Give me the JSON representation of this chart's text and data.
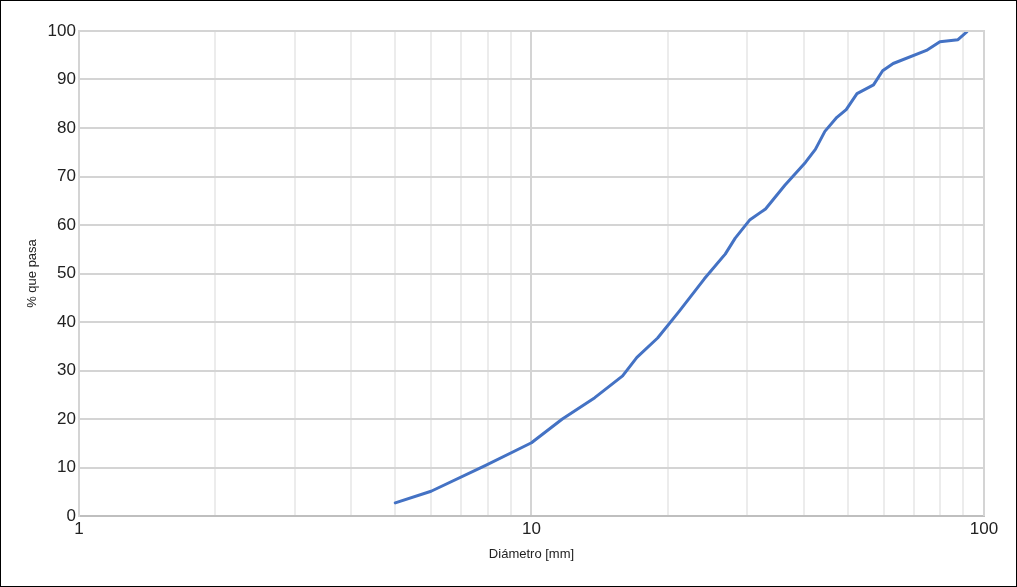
{
  "chart_data": {
    "type": "line",
    "xlabel": "Diámetro [mm]",
    "ylabel": "% que pasa",
    "log": "x",
    "grid": true,
    "legend": false,
    "marker": "none",
    "line_style": "solid",
    "xlim": [
      1,
      100
    ],
    "xticks": [
      1,
      {
        "value": 2,
        "label": null
      },
      {
        "value": 3,
        "label": null
      },
      {
        "value": 4,
        "label": null
      },
      {
        "value": 5,
        "label": null
      },
      {
        "value": 6,
        "label": null
      },
      {
        "value": 7,
        "label": null
      },
      {
        "value": 8,
        "label": null
      },
      {
        "value": 9,
        "label": null
      },
      10,
      {
        "value": 20,
        "label": null
      },
      {
        "value": 30,
        "label": null
      },
      {
        "value": 40,
        "label": null
      },
      {
        "value": 50,
        "label": null
      },
      {
        "value": 60,
        "label": null
      },
      {
        "value": 70,
        "label": null
      },
      {
        "value": 80,
        "label": null
      },
      {
        "value": 90,
        "label": null
      },
      100
    ],
    "ylim": [
      0,
      100
    ],
    "yticks": [
      0,
      10,
      20,
      30,
      40,
      50,
      60,
      70,
      80,
      90,
      100
    ],
    "series": [
      {
        "color": "#4472c4",
        "x": [
          5,
          6,
          7.9,
          10,
          11.7,
          13.8,
          15.9,
          17.1,
          19,
          21.2,
          24.1,
          26.8,
          28.2,
          30.4,
          32.9,
          36.3,
          40.3,
          42.4,
          44.5,
          47.3,
          49.6,
          52.4,
          57,
          59.7,
          63,
          74.6,
          79.9,
          87.6,
          91.6
        ],
        "values": [
          2.7,
          5.1,
          10.4,
          15.1,
          20,
          24.4,
          28.9,
          32.7,
          36.7,
          42.2,
          48.9,
          54,
          57.3,
          61.1,
          63.3,
          68.2,
          72.9,
          75.6,
          79.3,
          82.2,
          83.8,
          87.1,
          88.9,
          91.8,
          93.3,
          96,
          97.8,
          98.2,
          99.8
        ]
      }
    ]
  }
}
